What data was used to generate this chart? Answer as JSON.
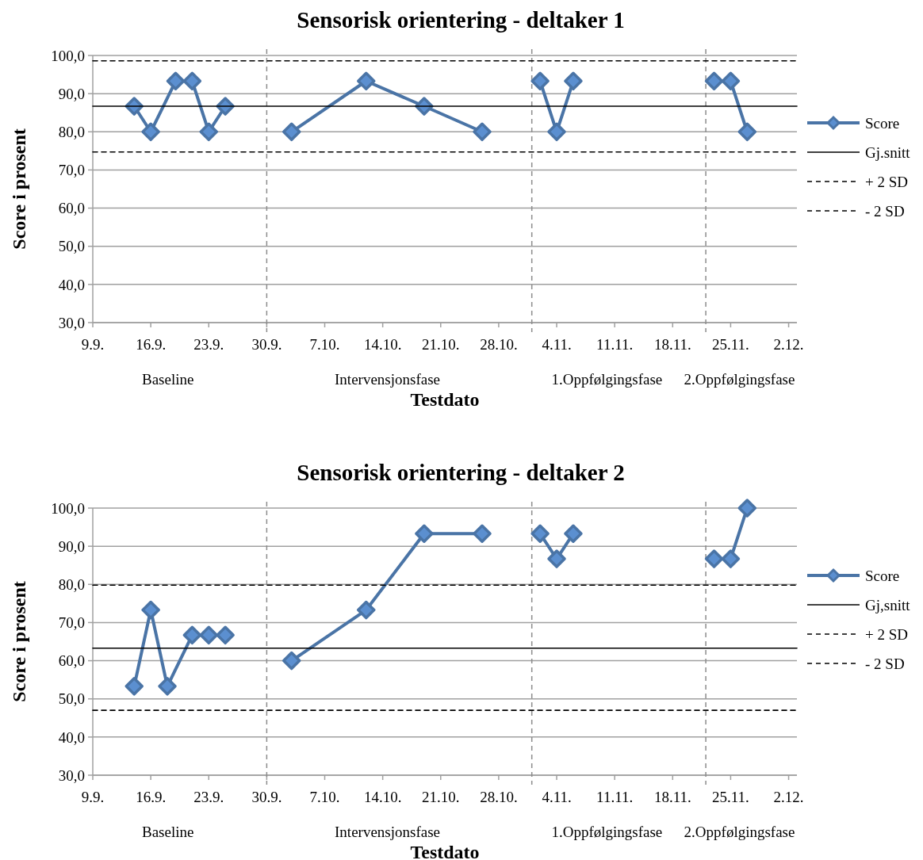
{
  "chart_data": [
    {
      "type": "line",
      "title": "Sensorisk orientering - deltaker 1",
      "xlabel": "Testdato",
      "ylabel": "Score i prosent",
      "xlim": [
        "--09-09",
        "--12-03"
      ],
      "ylim": [
        30,
        100
      ],
      "xticks": [
        {
          "value": "--09-09",
          "label": "9.9."
        },
        {
          "value": "--09-16",
          "label": "16.9."
        },
        {
          "value": "--09-23",
          "label": "23.9."
        },
        {
          "value": "--09-30",
          "label": "30.9."
        },
        {
          "value": "--10-07",
          "label": "7.10."
        },
        {
          "value": "--10-14",
          "label": "14.10."
        },
        {
          "value": "--10-21",
          "label": "21.10."
        },
        {
          "value": "--10-28",
          "label": "28.10."
        },
        {
          "value": "--11-04",
          "label": "4.11."
        },
        {
          "value": "--11-11",
          "label": "11.11."
        },
        {
          "value": "--11-18",
          "label": "18.11."
        },
        {
          "value": "--11-25",
          "label": "25.11."
        },
        {
          "value": "--12-02",
          "label": "2.12."
        }
      ],
      "yticks": [
        {
          "value": 30,
          "label": "30,0"
        },
        {
          "value": 40,
          "label": "40,0"
        },
        {
          "value": 50,
          "label": "50,0"
        },
        {
          "value": 60,
          "label": "60,0"
        },
        {
          "value": 70,
          "label": "70,0"
        },
        {
          "value": 80,
          "label": "80,0"
        },
        {
          "value": 90,
          "label": "90,0"
        },
        {
          "value": 100,
          "label": "100,0"
        }
      ],
      "grid": "y",
      "legend": "right",
      "ref_lines": [
        {
          "axis": "x",
          "value": "--09-30",
          "color": "#8c8c8c",
          "line_style": "dashed"
        },
        {
          "axis": "x",
          "value": "--11-01",
          "color": "#8c8c8c",
          "line_style": "dashed"
        },
        {
          "axis": "x",
          "value": "--11-22",
          "color": "#8c8c8c",
          "line_style": "dashed"
        }
      ],
      "annotations": [
        "Baseline",
        "Intervensjonsfase",
        "1.Oppfølgingsfase",
        "2.Oppfølgingsfase"
      ],
      "series": [
        {
          "name": "Score",
          "color": "#4a74a6",
          "marker": "diamond",
          "line_style": "solid",
          "x": [
            "--09-14",
            "--09-16",
            "--09-19",
            "--09-21",
            "--09-23",
            "--09-25",
            "--09-30",
            "--10-03",
            "--10-12",
            "--10-19",
            "--10-26",
            "--11-01",
            "--11-02",
            "--11-04",
            "--11-06",
            "--11-22",
            "--11-23",
            "--11-25",
            "--11-27"
          ],
          "values": [
            86.7,
            80,
            93.3,
            93.3,
            80,
            86.7,
            null,
            80,
            93.3,
            86.7,
            80,
            null,
            93.3,
            80,
            93.3,
            null,
            93.3,
            93.3,
            80
          ]
        },
        {
          "name": "Gj.snitt",
          "color": "#000000",
          "marker": "none",
          "line_style": "solid",
          "x": [
            "--09-09",
            "--12-03"
          ],
          "values": [
            86.7,
            86.7
          ]
        },
        {
          "name": "+ 2 SD",
          "color": "#000000",
          "marker": "none",
          "line_style": "dashed",
          "x": [
            "--09-09",
            "--12-03"
          ],
          "values": [
            98.6,
            98.6
          ]
        },
        {
          "name": "- 2 SD",
          "color": "#000000",
          "marker": "none",
          "line_style": "dashed",
          "x": [
            "--09-09",
            "--12-03"
          ],
          "values": [
            74.7,
            74.7
          ]
        }
      ]
    },
    {
      "type": "line",
      "title": "Sensorisk orientering - deltaker 2",
      "xlabel": "Testdato",
      "ylabel": "Score i prosent",
      "xlim": [
        "--09-09",
        "--12-03"
      ],
      "ylim": [
        30,
        100
      ],
      "xticks": [
        {
          "value": "--09-09",
          "label": "9.9."
        },
        {
          "value": "--09-16",
          "label": "16.9."
        },
        {
          "value": "--09-23",
          "label": "23.9."
        },
        {
          "value": "--09-30",
          "label": "30.9."
        },
        {
          "value": "--10-07",
          "label": "7.10."
        },
        {
          "value": "--10-14",
          "label": "14.10."
        },
        {
          "value": "--10-21",
          "label": "21.10."
        },
        {
          "value": "--10-28",
          "label": "28.10."
        },
        {
          "value": "--11-04",
          "label": "4.11."
        },
        {
          "value": "--11-11",
          "label": "11.11."
        },
        {
          "value": "--11-18",
          "label": "18.11."
        },
        {
          "value": "--11-25",
          "label": "25.11."
        },
        {
          "value": "--12-02",
          "label": "2.12."
        }
      ],
      "yticks": [
        {
          "value": 30,
          "label": "30,0"
        },
        {
          "value": 40,
          "label": "40,0"
        },
        {
          "value": 50,
          "label": "50,0"
        },
        {
          "value": 60,
          "label": "60,0"
        },
        {
          "value": 70,
          "label": "70,0"
        },
        {
          "value": 80,
          "label": "80,0"
        },
        {
          "value": 90,
          "label": "90,0"
        },
        {
          "value": 100,
          "label": "100,0"
        }
      ],
      "grid": "y",
      "legend": "right",
      "ref_lines": [
        {
          "axis": "x",
          "value": "--09-30",
          "color": "#8c8c8c",
          "line_style": "dashed"
        },
        {
          "axis": "x",
          "value": "--11-01",
          "color": "#8c8c8c",
          "line_style": "dashed"
        },
        {
          "axis": "x",
          "value": "--11-22",
          "color": "#8c8c8c",
          "line_style": "dashed"
        }
      ],
      "annotations": [
        "Baseline",
        "Intervensjonsfase",
        "1.Oppfølgingsfase",
        "2.Oppfølgingsfase"
      ],
      "series": [
        {
          "name": "Score",
          "color": "#4a74a6",
          "marker": "diamond",
          "line_style": "solid",
          "x": [
            "--09-14",
            "--09-16",
            "--09-18",
            "--09-21",
            "--09-23",
            "--09-25",
            "--09-30",
            "--10-03",
            "--10-12",
            "--10-19",
            "--10-26",
            "--11-01",
            "--11-02",
            "--11-04",
            "--11-06",
            "--11-22",
            "--11-23",
            "--11-25",
            "--11-27"
          ],
          "values": [
            53.3,
            73.3,
            53.3,
            66.7,
            66.7,
            66.7,
            null,
            60,
            73.3,
            93.3,
            93.3,
            null,
            93.3,
            86.7,
            93.3,
            null,
            86.7,
            86.7,
            100
          ]
        },
        {
          "name": "Gj,snitt",
          "color": "#000000",
          "marker": "none",
          "line_style": "solid",
          "x": [
            "--09-09",
            "--12-03"
          ],
          "values": [
            63.3,
            63.3
          ]
        },
        {
          "name": "+ 2 SD",
          "color": "#000000",
          "marker": "none",
          "line_style": "dashed",
          "x": [
            "--09-09",
            "--12-03"
          ],
          "values": [
            79.8,
            79.8
          ]
        },
        {
          "name": "- 2 SD",
          "color": "#000000",
          "marker": "none",
          "line_style": "dashed",
          "x": [
            "--09-09",
            "--12-03"
          ],
          "values": [
            47,
            47
          ]
        }
      ]
    }
  ]
}
